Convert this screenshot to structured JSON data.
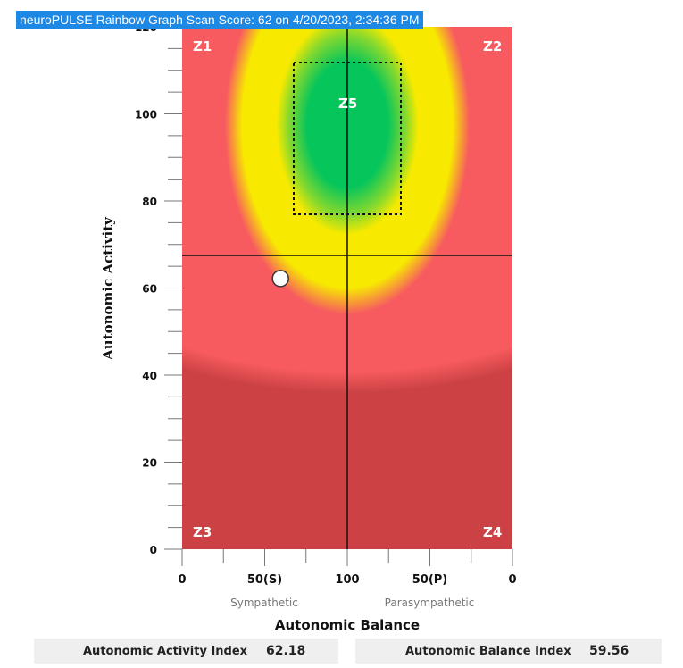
{
  "title": "neuroPULSE Rainbow Graph Scan Score: 62 on 4/20/2023, 2:34:36 PM",
  "chart_data": {
    "type": "scatter",
    "xlabel": "Autonomic Balance",
    "ylabel": "Autonomic Activity",
    "x_ticks": [
      "0",
      "50(S)",
      "100",
      "50(P)",
      "0"
    ],
    "x_subtitles": {
      "left": "Sympathetic",
      "right": "Parasympathetic"
    },
    "y_ticks": [
      0,
      20,
      40,
      60,
      80,
      100,
      120
    ],
    "ylim": [
      0,
      120
    ],
    "zones": [
      {
        "label": "Z1",
        "position": "top-left"
      },
      {
        "label": "Z2",
        "position": "top-right"
      },
      {
        "label": "Z3",
        "position": "bottom-left"
      },
      {
        "label": "Z4",
        "position": "bottom-right"
      },
      {
        "label": "Z5",
        "position": "center"
      }
    ],
    "point": {
      "balance_index": 59.56,
      "activity_index": 62.18
    },
    "colors": {
      "red": "#f75b5f",
      "dark_red": "#cc4244",
      "yellow": "#f7ea00",
      "green": "#05c55b",
      "title_bg": "#1e88e5"
    }
  },
  "indices": [
    {
      "label": "Autonomic Activity Index",
      "value": "62.18"
    },
    {
      "label": "Autonomic Balance Index",
      "value": "59.56"
    }
  ]
}
